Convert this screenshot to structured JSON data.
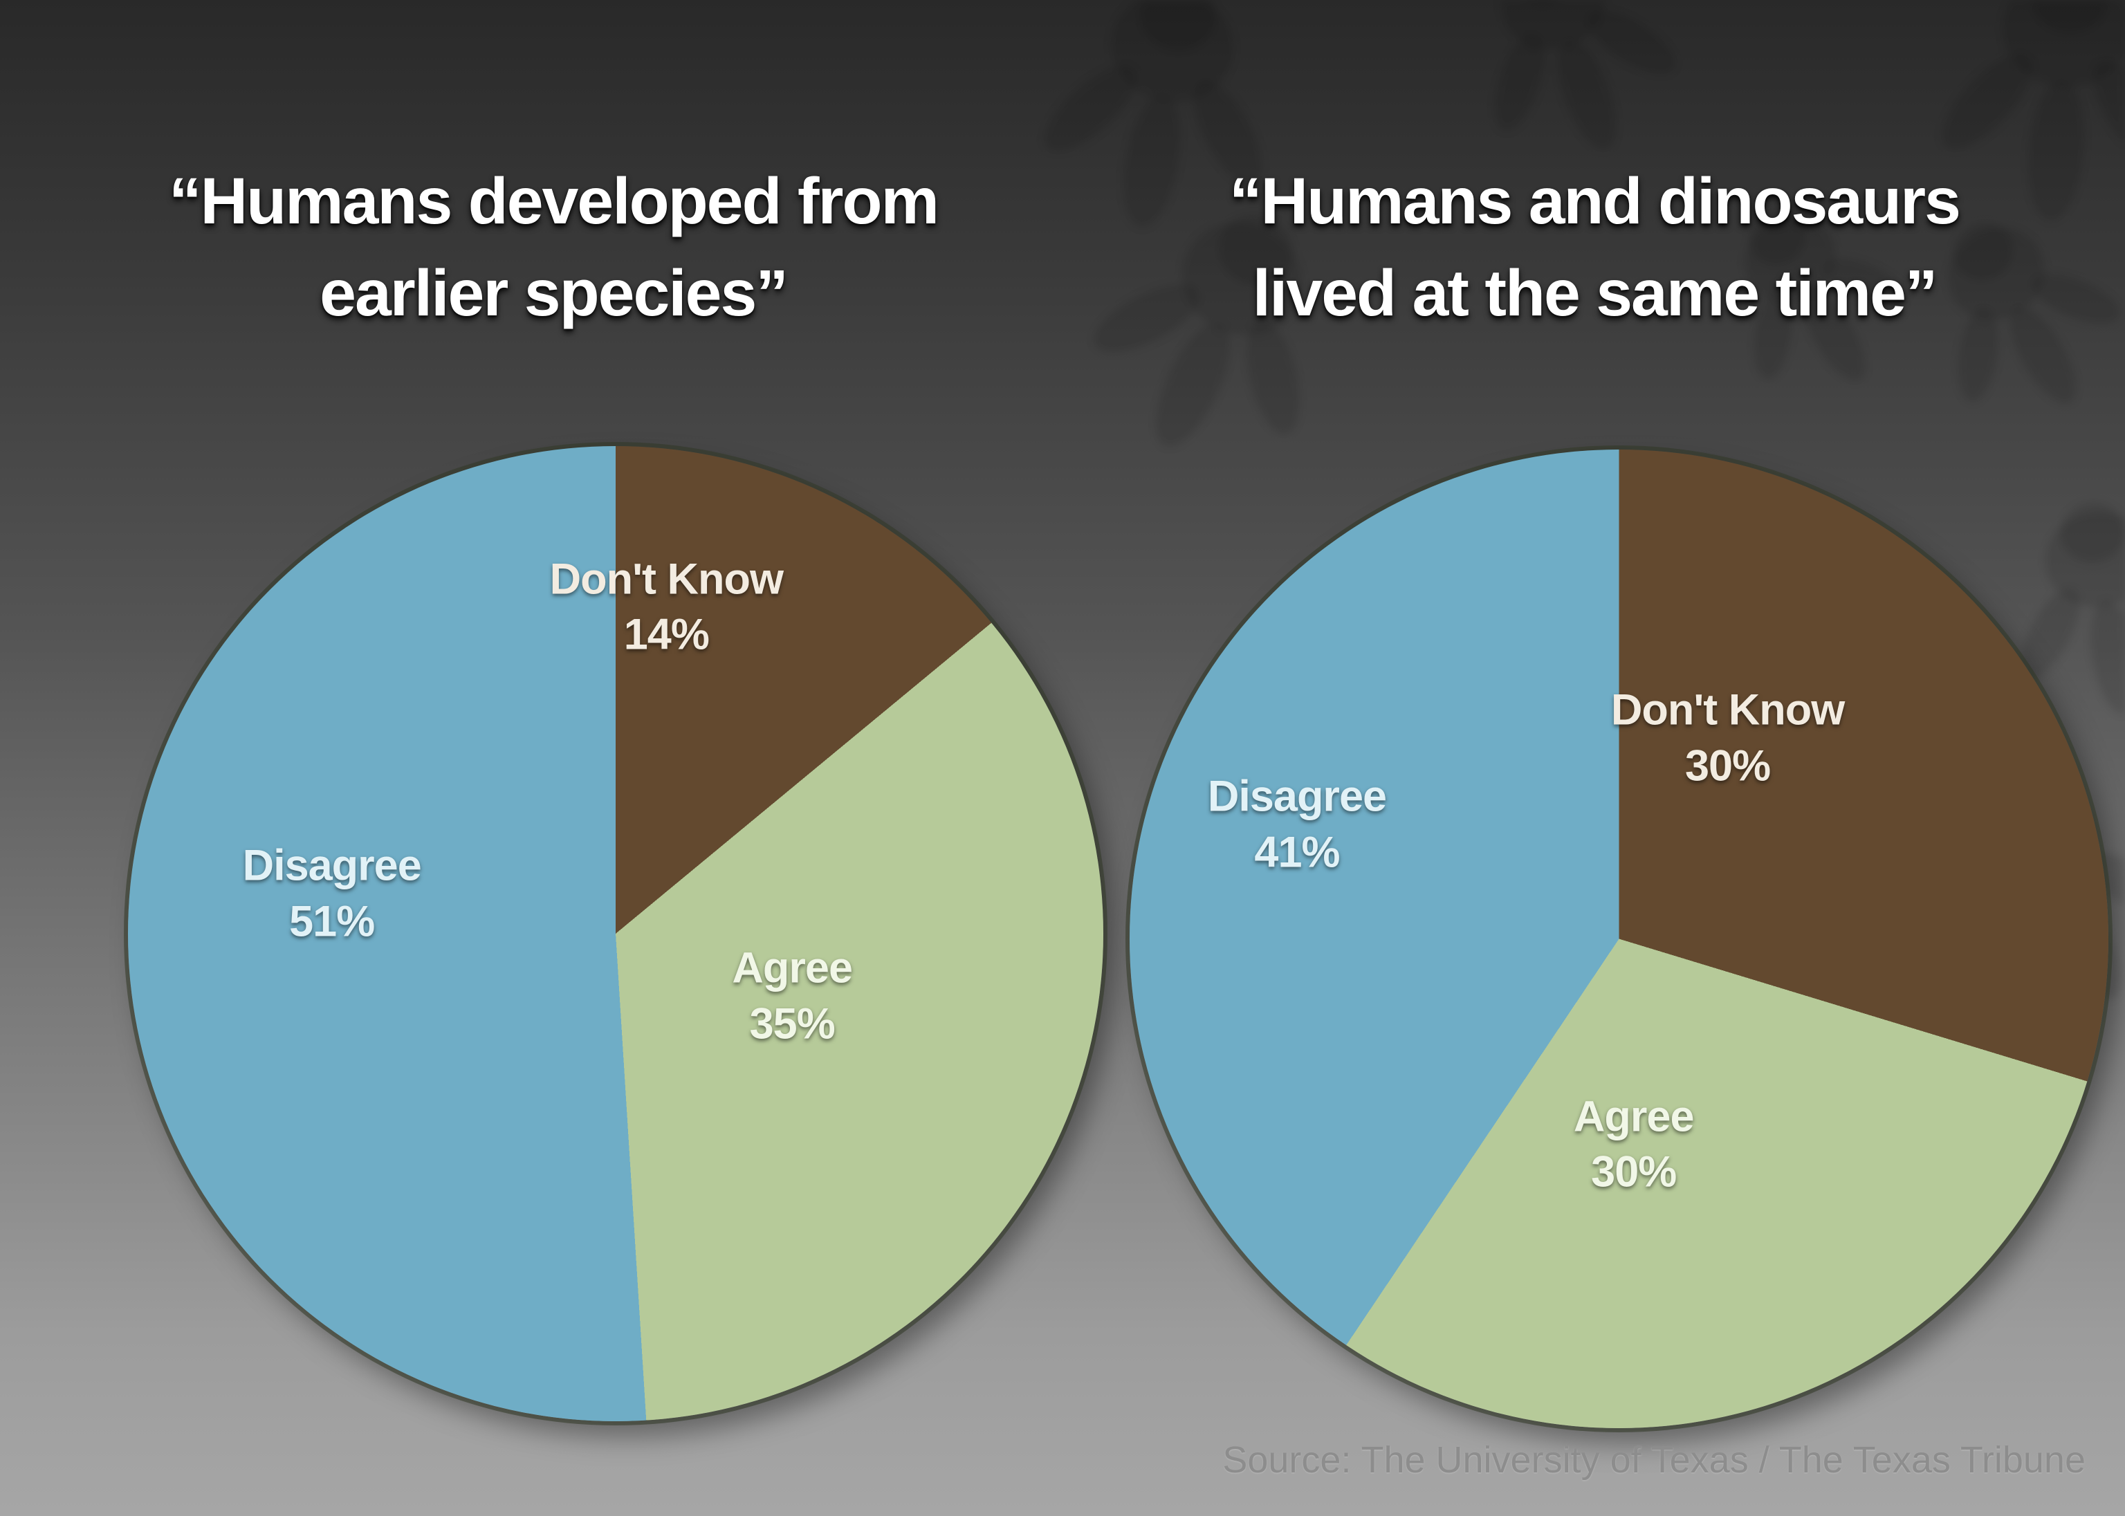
{
  "background": {
    "top_color": "#2a2a2a",
    "bottom_color": "#a6a6a6"
  },
  "source": "Source: The University of Texas / The Texas Tribune",
  "chart_data": [
    {
      "type": "pie",
      "title_lines": [
        "“Humans developed from",
        "earlier species”"
      ],
      "start_angle_deg": 0,
      "direction": "clockwise",
      "slices": [
        {
          "label": "Don't Know",
          "value": 14,
          "value_label": "14%",
          "color": "#63492f",
          "label_color": "#f3ece1",
          "label_x": 55.2,
          "label_y": 16.5
        },
        {
          "label": "Agree",
          "value": 35,
          "value_label": "35%",
          "color": "#b6ca99",
          "label_color": "#f1f7e7",
          "label_x": 68.1,
          "label_y": 56.4
        },
        {
          "label": "Disagree",
          "value": 51,
          "value_label": "51%",
          "color": "#6fadc6",
          "label_color": "#e2f2f7",
          "label_x": 20.9,
          "label_y": 45.9
        }
      ]
    },
    {
      "type": "pie",
      "title_lines": [
        "“Humans and dinosaurs",
        "lived at the same time”"
      ],
      "start_angle_deg": 0,
      "direction": "clockwise",
      "slices": [
        {
          "label": "Don't Know",
          "value": 30,
          "value_label": "30%",
          "color": "#63492f",
          "label_color": "#f3ece1",
          "label_x": 61.1,
          "label_y": 29.5
        },
        {
          "label": "Agree",
          "value": 30,
          "value_label": "30%",
          "color": "#b6ca99",
          "label_color": "#f1f7e7",
          "label_x": 51.5,
          "label_y": 71.0
        },
        {
          "label": "Disagree",
          "value": 41,
          "value_label": "41%",
          "color": "#6fadc6",
          "label_color": "#e2f2f7",
          "label_x": 17.1,
          "label_y": 38.3
        }
      ]
    }
  ]
}
